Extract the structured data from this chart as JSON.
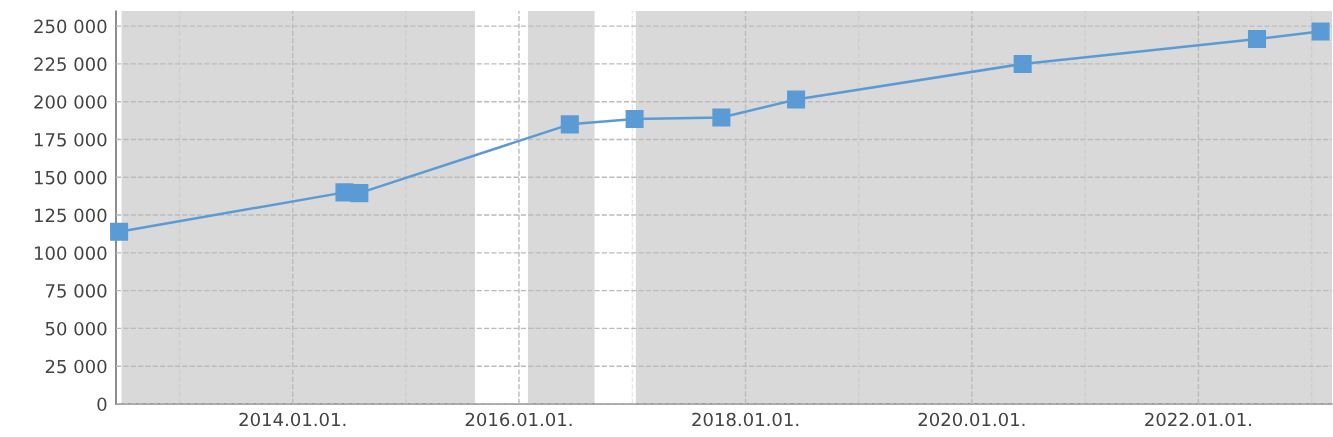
{
  "chart_data": {
    "type": "line",
    "x": [
      "2012-06-20",
      "2014-06-17",
      "2014-08-04",
      "2016-06-13",
      "2017-01-08",
      "2017-10-15",
      "2018-06-13",
      "2020-06-13",
      "2022-07-09",
      "2023-01-30"
    ],
    "series": [
      {
        "color": "#5b9bd5",
        "values": [
          114000,
          140000,
          139500,
          185000,
          188500,
          189500,
          201500,
          225000,
          241500,
          246500
        ]
      }
    ],
    "marker": "square",
    "line_style": "solid",
    "grid": true,
    "legend": false,
    "xlim": [
      "2012-06-10",
      "2023-03-08"
    ],
    "xticks": [
      {
        "value": "2013-01-01",
        "label": null
      },
      {
        "value": "2014-01-01",
        "label": "2014.01.01."
      },
      {
        "value": "2015-01-01",
        "label": null
      },
      {
        "value": "2016-01-01",
        "label": "2016.01.01."
      },
      {
        "value": "2017-01-01",
        "label": null
      },
      {
        "value": "2018-01-01",
        "label": "2018.01.01."
      },
      {
        "value": "2019-01-01",
        "label": null
      },
      {
        "value": "2020-01-01",
        "label": "2020.01.01."
      },
      {
        "value": "2021-01-01",
        "label": null
      },
      {
        "value": "2022-01-01",
        "label": "2022.01.01."
      },
      {
        "value": "2023-01-01",
        "label": null
      }
    ],
    "ylim": [
      0,
      260000
    ],
    "yticks": [
      {
        "value": 0,
        "label": "0"
      },
      {
        "value": 25000,
        "label": "25 000"
      },
      {
        "value": 50000,
        "label": "50 000"
      },
      {
        "value": 75000,
        "label": "75 000"
      },
      {
        "value": 100000,
        "label": "100 000"
      },
      {
        "value": 125000,
        "label": "125 000"
      },
      {
        "value": 150000,
        "label": "150 000"
      },
      {
        "value": 175000,
        "label": "175 000"
      },
      {
        "value": 200000,
        "label": "200 000"
      },
      {
        "value": 225000,
        "label": "225 000"
      },
      {
        "value": 250000,
        "label": "250 000"
      }
    ],
    "bands": [
      {
        "axis": "x",
        "from": "2012-06-28",
        "to": "2015-08-12",
        "color": "#d9d9d9"
      },
      {
        "axis": "x",
        "from": "2016-01-30",
        "to": "2016-09-01",
        "color": "#d9d9d9"
      },
      {
        "axis": "x",
        "from": "2017-01-12",
        "to": "2023-03-08",
        "color": "#d9d9d9"
      }
    ]
  }
}
